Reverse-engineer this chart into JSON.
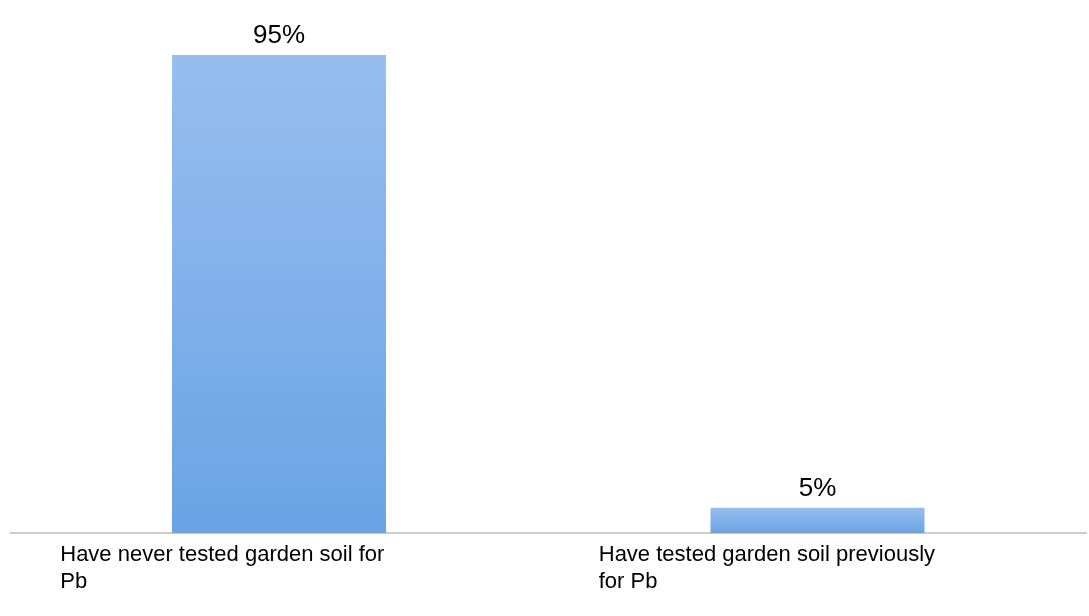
{
  "chart_data": {
    "type": "bar",
    "categories": [
      "Have never tested garden soil for Pb",
      "Have tested garden soil previously for Pb"
    ],
    "values": [
      95,
      5
    ],
    "value_labels": [
      "95%",
      "5%"
    ],
    "color": "#6aa3e6"
  }
}
